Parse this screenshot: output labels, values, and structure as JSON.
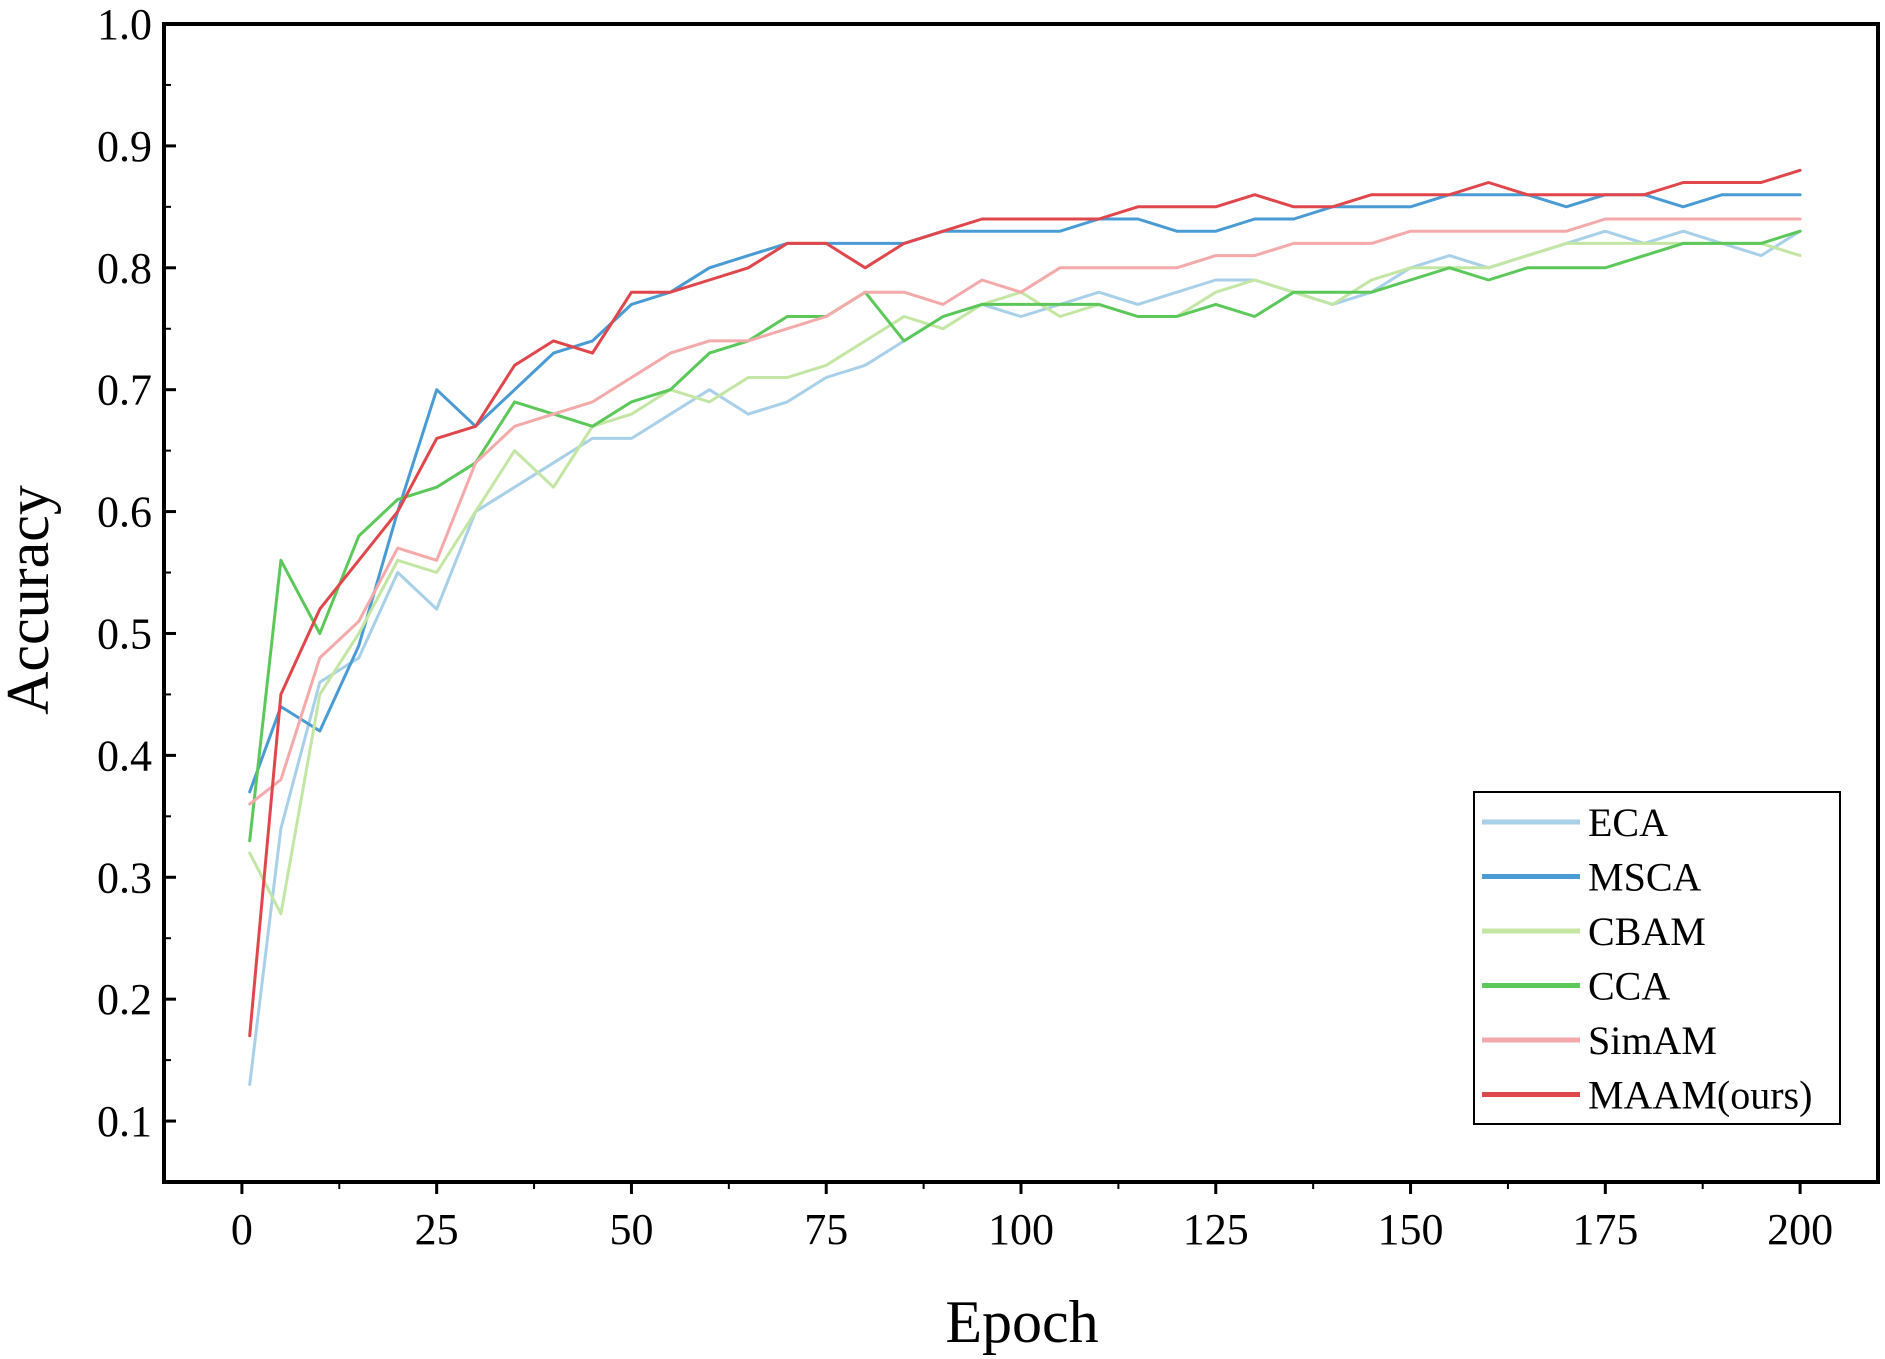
{
  "chart_data": {
    "type": "line",
    "title": "",
    "xlabel": "Epoch",
    "ylabel": "Accuracy",
    "xlim": [
      -10,
      210
    ],
    "ylim": [
      0.05,
      1.0
    ],
    "xticks": [
      0,
      25,
      50,
      75,
      100,
      125,
      150,
      175,
      200
    ],
    "yticks": [
      0.1,
      0.2,
      0.3,
      0.4,
      0.5,
      0.6,
      0.7,
      0.8,
      0.9,
      1.0
    ],
    "ytick_labels": [
      "0.1",
      "0.2",
      "0.3",
      "0.4",
      "0.5",
      "0.6",
      "0.7",
      "0.8",
      "0.9",
      "1.0"
    ],
    "grid": false,
    "legend_position": "bottom-right",
    "x": [
      1,
      5,
      10,
      15,
      20,
      25,
      30,
      35,
      40,
      45,
      50,
      55,
      60,
      65,
      70,
      75,
      80,
      85,
      90,
      95,
      100,
      105,
      110,
      115,
      120,
      125,
      130,
      135,
      140,
      145,
      150,
      155,
      160,
      165,
      170,
      175,
      180,
      185,
      190,
      195,
      200
    ],
    "series": [
      {
        "name": "ECA",
        "color": "#a8d0e8",
        "values": [
          0.13,
          0.34,
          0.46,
          0.48,
          0.55,
          0.52,
          0.6,
          0.62,
          0.64,
          0.66,
          0.66,
          0.68,
          0.7,
          0.68,
          0.69,
          0.71,
          0.72,
          0.74,
          0.76,
          0.77,
          0.76,
          0.77,
          0.78,
          0.77,
          0.78,
          0.79,
          0.79,
          0.78,
          0.77,
          0.78,
          0.8,
          0.81,
          0.8,
          0.81,
          0.82,
          0.83,
          0.82,
          0.83,
          0.82,
          0.81,
          0.83
        ]
      },
      {
        "name": "MSCA",
        "color": "#4a9bd4",
        "values": [
          0.37,
          0.44,
          0.42,
          0.49,
          0.6,
          0.7,
          0.67,
          0.7,
          0.73,
          0.74,
          0.77,
          0.78,
          0.8,
          0.81,
          0.82,
          0.82,
          0.82,
          0.82,
          0.83,
          0.83,
          0.83,
          0.83,
          0.84,
          0.84,
          0.83,
          0.83,
          0.84,
          0.84,
          0.85,
          0.85,
          0.85,
          0.86,
          0.86,
          0.86,
          0.85,
          0.86,
          0.86,
          0.85,
          0.86,
          0.86,
          0.86
        ]
      },
      {
        "name": "CBAM",
        "color": "#c4e6a4",
        "values": [
          0.32,
          0.27,
          0.45,
          0.5,
          0.56,
          0.55,
          0.6,
          0.65,
          0.62,
          0.67,
          0.68,
          0.7,
          0.69,
          0.71,
          0.71,
          0.72,
          0.74,
          0.76,
          0.75,
          0.77,
          0.78,
          0.76,
          0.77,
          0.76,
          0.76,
          0.78,
          0.79,
          0.78,
          0.77,
          0.79,
          0.8,
          0.8,
          0.8,
          0.81,
          0.82,
          0.82,
          0.82,
          0.82,
          0.82,
          0.82,
          0.81
        ]
      },
      {
        "name": "CCA",
        "color": "#5cc85a",
        "values": [
          0.33,
          0.56,
          0.5,
          0.58,
          0.61,
          0.62,
          0.64,
          0.69,
          0.68,
          0.67,
          0.69,
          0.7,
          0.73,
          0.74,
          0.76,
          0.76,
          0.78,
          0.74,
          0.76,
          0.77,
          0.77,
          0.77,
          0.77,
          0.76,
          0.76,
          0.77,
          0.76,
          0.78,
          0.78,
          0.78,
          0.79,
          0.8,
          0.79,
          0.8,
          0.8,
          0.8,
          0.81,
          0.82,
          0.82,
          0.82,
          0.83
        ]
      },
      {
        "name": "SimAM",
        "color": "#f4aaaa",
        "values": [
          0.36,
          0.38,
          0.48,
          0.51,
          0.57,
          0.56,
          0.64,
          0.67,
          0.68,
          0.69,
          0.71,
          0.73,
          0.74,
          0.74,
          0.75,
          0.76,
          0.78,
          0.78,
          0.77,
          0.79,
          0.78,
          0.8,
          0.8,
          0.8,
          0.8,
          0.81,
          0.81,
          0.82,
          0.82,
          0.82,
          0.83,
          0.83,
          0.83,
          0.83,
          0.83,
          0.84,
          0.84,
          0.84,
          0.84,
          0.84,
          0.84
        ]
      },
      {
        "name": "MAAM(ours)",
        "color": "#e0474c",
        "values": [
          0.17,
          0.45,
          0.52,
          0.56,
          0.6,
          0.66,
          0.67,
          0.72,
          0.74,
          0.73,
          0.78,
          0.78,
          0.79,
          0.8,
          0.82,
          0.82,
          0.8,
          0.82,
          0.83,
          0.84,
          0.84,
          0.84,
          0.84,
          0.85,
          0.85,
          0.85,
          0.86,
          0.85,
          0.85,
          0.86,
          0.86,
          0.86,
          0.87,
          0.86,
          0.86,
          0.86,
          0.86,
          0.87,
          0.87,
          0.87,
          0.88
        ]
      }
    ]
  }
}
